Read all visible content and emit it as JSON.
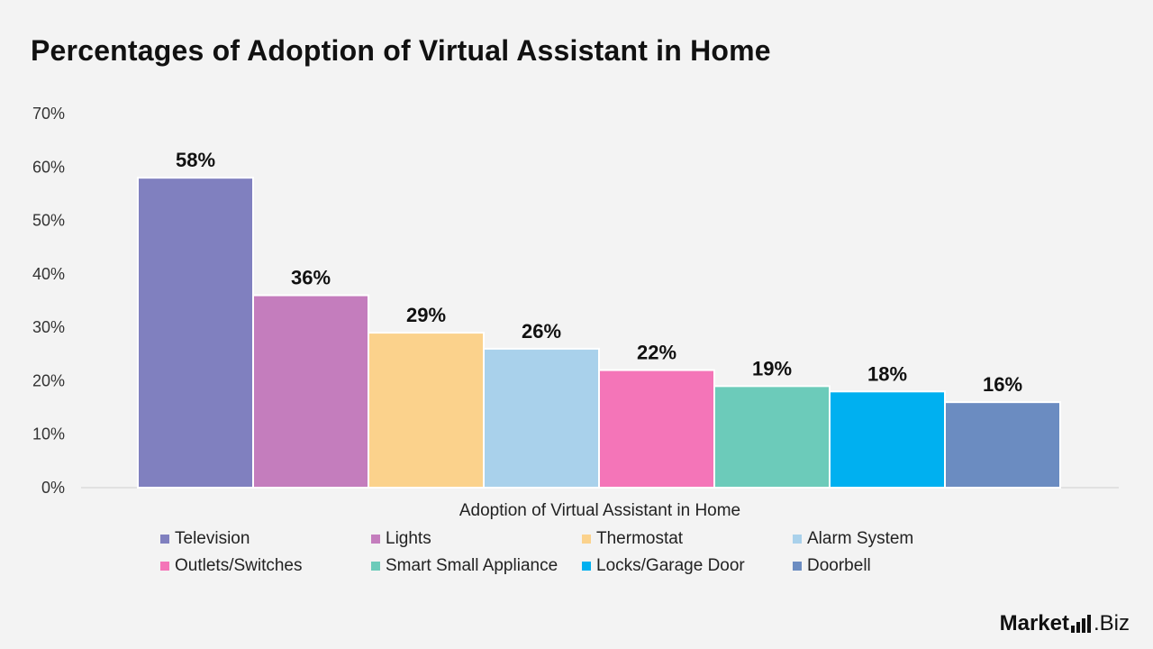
{
  "title": "Percentages of Adoption of Virtual Assistant in Home",
  "brand": {
    "name_bold": "Market",
    "name_regular": ".Biz",
    "icon": "signal-bars-icon"
  },
  "chart_data": {
    "type": "bar",
    "title": "Percentages of Adoption of Virtual Assistant in Home",
    "xlabel": "Adoption of Virtual Assistant in Home",
    "ylabel": "",
    "ylim": [
      0,
      70
    ],
    "yticks": [
      "0%",
      "10%",
      "20%",
      "30%",
      "40%",
      "50%",
      "60%",
      "70%"
    ],
    "grid": false,
    "legend_position": "bottom",
    "categories": [
      "Television",
      "Lights",
      "Thermostat",
      "Alarm System",
      "Outlets/Switches",
      "Smart Small Appliance",
      "Locks/Garage Door",
      "Doorbell"
    ],
    "values": [
      58,
      36,
      29,
      26,
      22,
      19,
      18,
      16
    ],
    "data_labels": [
      "58%",
      "36%",
      "29%",
      "26%",
      "22%",
      "19%",
      "18%",
      "16%"
    ],
    "colors": [
      "#8080bf",
      "#c47dbd",
      "#fbd28c",
      "#a9d1eb",
      "#f475b8",
      "#6ccbba",
      "#00b0f0",
      "#6b8cc1"
    ]
  }
}
